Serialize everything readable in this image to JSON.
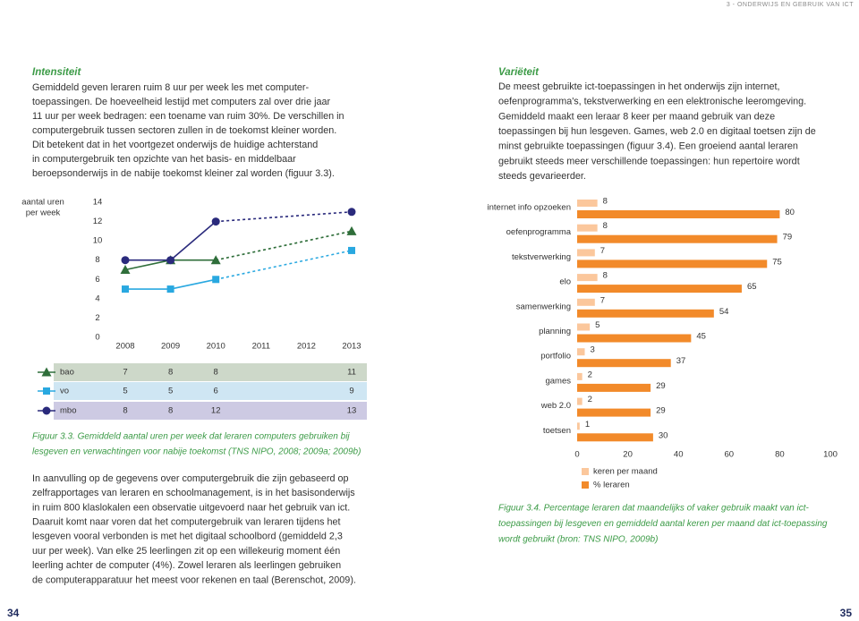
{
  "header": "3 - ONDERWIJS EN GEBRUIK VAN ICT",
  "page_numbers": [
    "34",
    "35"
  ],
  "left": {
    "heading": "Intensiteit",
    "lines": [
      "Gemiddeld geven leraren ruim 8 uur per week les met computer-",
      "toepassingen. De hoeveelheid lestijd met computers zal over drie jaar",
      "11 uur per week bedragen: een toename van ruim 30%. De verschillen in",
      "computergebruik tussen sectoren zullen in de toekomst kleiner worden.",
      "Dit betekent dat in het voortgezet onderwijs de huidige achterstand",
      "in computergebruik ten opzichte van het basis- en middelbaar",
      "beroepsonderwijs in de nabije toekomst kleiner zal worden (figuur 3.3)."
    ]
  },
  "right": {
    "heading": "Variëteit",
    "lines": [
      "De meest gebruikte ict-toepassingen in het onderwijs zijn internet,",
      "oefenprogramma's, tekstverwerking en een elektronische leeromgeving.",
      "Gemiddeld maakt een leraar 8 keer per maand gebruik van deze",
      "toepassingen bij hun lesgeven. Games, web 2.0 en digitaal toetsen zijn de",
      "minst gebruikte toepassingen (figuur 3.4). Een groeiend aantal leraren",
      "gebruikt steeds meer verschillende toepassingen: hun repertoire wordt",
      "steeds gevarieerder."
    ]
  },
  "bottom_left": {
    "lines": [
      "In aanvulling op de gegevens over computergebruik die zijn  gebaseerd op",
      "zelfrapportages van leraren en schoolmanagement, is in het basisonderwijs",
      "in ruim 800 klaslokalen een observatie uitgevoerd naar het gebruik van ict.",
      "Daaruit komt naar voren dat het computergebruik van leraren tijdens het",
      "lesgeven vooral verbonden is met het digitaal schoolbord (gemiddeld 2,3",
      "uur per week). Van elke 25 leerlingen zit op een willekeurig moment één",
      "leerling achter de computer (4%). Zowel leraren als leerlingen gebruiken",
      "de computerapparatuur het meest voor rekenen en taal (Berenschot, 2009)."
    ]
  },
  "chart_data": [
    {
      "type": "line",
      "ylabel": [
        "aantal uren",
        "per week"
      ],
      "categories": [
        "2008",
        "2009",
        "2010",
        "2011",
        "2012",
        "2013"
      ],
      "ylim": [
        0,
        14
      ],
      "yticks": [
        0,
        2,
        4,
        6,
        8,
        10,
        12,
        14
      ],
      "series": [
        {
          "name": "bao",
          "color": "#2f6e3a",
          "marker": "triangle",
          "band_color": "#cdd8c9",
          "values": [
            7,
            8,
            8,
            null,
            null,
            11
          ]
        },
        {
          "name": "vo",
          "color": "#29a8e0",
          "marker": "square",
          "band_color": "#cfe6f3",
          "values": [
            5,
            5,
            6,
            null,
            null,
            9
          ]
        },
        {
          "name": "mbo",
          "color": "#2a2a7c",
          "marker": "circle",
          "band_color": "#cdcae3",
          "values": [
            8,
            8,
            12,
            null,
            null,
            13
          ]
        }
      ],
      "caption": [
        "Figuur 3.3. Gemiddeld aantal uren per week dat leraren computers gebruiken bij",
        "lesgeven en verwachtingen voor nabije toekomst (TNS NIPO, 2008; 2009a; 2009b)"
      ]
    },
    {
      "type": "hbar",
      "categories": [
        "internet info opzoeken",
        "oefenprogramma",
        "tekstverwerking",
        "elo",
        "samenwerking",
        "planning",
        "portfolio",
        "games",
        "web 2.0",
        "toetsen"
      ],
      "series": [
        {
          "name": "keren per maand",
          "color": "#fbc79c",
          "values": [
            8,
            8,
            7,
            8,
            7,
            5,
            3,
            2,
            2,
            1
          ]
        },
        {
          "name": "% leraren",
          "color": "#f28a2a",
          "values": [
            80,
            79,
            75,
            65,
            54,
            45,
            37,
            29,
            29,
            30
          ]
        }
      ],
      "xlim": [
        0,
        100
      ],
      "xticks": [
        0,
        20,
        40,
        60,
        80,
        100
      ],
      "legend": "bottom",
      "caption": [
        "Figuur 3.4. Percentage leraren dat maandelijks of vaker gebruik maakt van ict-",
        "toepassingen bij lesgeven en gemiddeld aantal keren per maand dat ict-toepassing",
        "wordt gebruikt (bron: TNS NIPO, 2009b)"
      ]
    }
  ]
}
